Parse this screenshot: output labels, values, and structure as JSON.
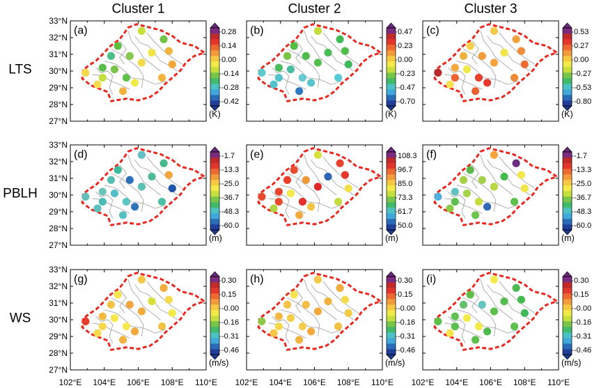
{
  "column_titles": [
    "Cluster 1",
    "Cluster 2",
    "Cluster 3"
  ],
  "row_labels": [
    "LTS",
    "PBLH",
    "WS"
  ],
  "lat_ticks": [
    "33°N",
    "32°N",
    "31°N",
    "30°N",
    "29°N",
    "28°N",
    "27°N"
  ],
  "lon_ticks": [
    "102°E",
    "104°E",
    "106°E",
    "108°E",
    "110°E"
  ],
  "map_extent": {
    "lon": [
      102,
      110
    ],
    "lat": [
      27,
      33
    ]
  },
  "panels": [
    {
      "id": "a",
      "label": "(a)",
      "row": 0,
      "col": 0,
      "unit": "(K)",
      "colorbar": [
        "0.28",
        "0.14",
        "0.00",
        "-0.14",
        "-0.28",
        "-0.42"
      ],
      "dots": [
        "#c9e03a",
        "#5fbe3e",
        "#72c447",
        "#f1e44b",
        "#f0b340",
        "#4bbf86",
        "#85c94f",
        "#f2da4b",
        "#f3a73a",
        "#5bbd4c",
        "#79c44b",
        "#f6d84c",
        "#62c14e",
        "#c6df3e",
        "#f1ea48",
        "#f3b23e",
        "#f2b43e",
        "#f6dc4e"
      ]
    },
    {
      "id": "b",
      "label": "(b)",
      "row": 0,
      "col": 1,
      "unit": "(K)",
      "colorbar": [
        "0.47",
        "0.23",
        "0.00",
        "-0.23",
        "-0.47",
        "-0.70"
      ],
      "dots": [
        "#c3dd3c",
        "#54bc44",
        "#3fba57",
        "#4bbd54",
        "#50bc4c",
        "#7ac549",
        "#4ebd4d",
        "#56be4c",
        "#3fba5a",
        "#4abc5b",
        "#49bc9f",
        "#5ec9c8",
        "#67c9d1",
        "#54c2cb",
        "#58c4cc",
        "#2f79c1",
        "#5ccad6",
        "#52c3ce"
      ]
    },
    {
      "id": "c",
      "label": "(c)",
      "row": 0,
      "col": 2,
      "unit": "(K)",
      "colorbar": [
        "0.53",
        "0.27",
        "0.00",
        "-0.27",
        "-0.53",
        "-0.80"
      ],
      "dots": [
        "#f7c94a",
        "#f5d14b",
        "#f3a23b",
        "#f1e44b",
        "#ee8b38",
        "#f0b23e",
        "#f39c3c",
        "#f4a43e",
        "#ee6a33",
        "#f3a73e",
        "#f2ea48",
        "#b82a2a",
        "#e8402d",
        "#ed6432",
        "#e6382d",
        "#e9612f",
        "#ef8c38",
        "#f8e24f"
      ]
    },
    {
      "id": "d",
      "label": "(d)",
      "row": 1,
      "col": 0,
      "unit": "(m)",
      "colorbar": [
        "-1.7",
        "-13.3",
        "-25.0",
        "-36.7",
        "-48.3",
        "-60.0"
      ],
      "dots": [
        "#5fbfc2",
        "#3fb99a",
        "#48b98e",
        "#4fbb93",
        "#f2a53b",
        "#55bfb2",
        "#2a6db8",
        "#5ac0b3",
        "#1f55a8",
        "#6cc3ba",
        "#54bec8",
        "#61c1b8",
        "#5cc5c1",
        "#4cbcb6",
        "#2f74bb",
        "#55c0bf",
        "#4fbfa6",
        "#5bc0bc"
      ]
    },
    {
      "id": "e",
      "label": "(e)",
      "row": 1,
      "col": 1,
      "unit": "(m)",
      "colorbar": [
        "108.3",
        "96.7",
        "85.0",
        "73.3",
        "61.7",
        "50.0"
      ],
      "dots": [
        "#d6e03b",
        "#ea4d30",
        "#e8432e",
        "#2f66b4",
        "#e6372c",
        "#e8402d",
        "#ef9939",
        "#df2929",
        "#f4df4b",
        "#e8432e",
        "#f5ea4b",
        "#e54b2d",
        "#e4312c",
        "#ea4b2f",
        "#f4c544",
        "#f2ac3d",
        "#c4dc3f",
        "#b0d444"
      ]
    },
    {
      "id": "f",
      "label": "(f)",
      "row": 1,
      "col": 2,
      "unit": "(m)",
      "colorbar": [
        "-1.7",
        "-13.3",
        "-25.0",
        "-36.7",
        "-48.3",
        "-60.0"
      ],
      "dots": [
        "#f3a53c",
        "#5aba49",
        "#6b2d80",
        "#46ba4f",
        "#f2e74b",
        "#a5d145",
        "#a2d04a",
        "#b6d843",
        "#f1e44b",
        "#64c0c3",
        "#a6d34a",
        "#4fb0dd",
        "#c6dc3f",
        "#5ebf4f",
        "#2f69b6",
        "#6bc44c",
        "#5ebf4c",
        "#8acb48"
      ]
    },
    {
      "id": "g",
      "label": "(g)",
      "row": 2,
      "col": 0,
      "unit": "(m/s)",
      "colorbar": [
        "0.30",
        "0.15",
        "-0.00",
        "-0.16",
        "-0.31",
        "-0.46"
      ],
      "dots": [
        "#f4c94a",
        "#f6e34e",
        "#f3ac3e",
        "#d9df3d",
        "#f5da4b",
        "#f4c247",
        "#f2a43e",
        "#f2a93d",
        "#f2ea48",
        "#f2b841",
        "#f5e84d",
        "#e63c2c",
        "#f5e850",
        "#f6d84c",
        "#f3a83c",
        "#f3b13d",
        "#f1c246",
        "#f6da4e"
      ]
    },
    {
      "id": "h",
      "label": "(h)",
      "row": 2,
      "col": 1,
      "unit": "(m/s)",
      "colorbar": [
        "0.30",
        "0.15",
        "-0.00",
        "-0.16",
        "-0.31",
        "-0.46"
      ],
      "dots": [
        "#f4c94a",
        "#f6e34e",
        "#f3ac3e",
        "#f3b23f",
        "#f5da4b",
        "#f4c247",
        "#f4bd43",
        "#f2a93d",
        "#f3cb46",
        "#f2b841",
        "#f6cf49",
        "#91c84b",
        "#f6cc4c",
        "#f6d84c",
        "#f3a83c",
        "#f3b13d",
        "#f1c246",
        "#f5c64a"
      ]
    },
    {
      "id": "i",
      "label": "(i)",
      "row": 2,
      "col": 2,
      "unit": "(m/s)",
      "colorbar": [
        "0.30",
        "0.15",
        "-0.00",
        "-0.16",
        "-0.31",
        "-0.46"
      ],
      "dots": [
        "#f4ea4b",
        "#5cbe46",
        "#4cbc50",
        "#55be4d",
        "#45ba4f",
        "#64c06f",
        "#64c5bf",
        "#5dbf4c",
        "#3fba57",
        "#5cc052",
        "#f0ea4b",
        "#5dbf4c",
        "#f2ea48",
        "#5dbf4c",
        "#4dbc4d",
        "#5dbf4c",
        "#5ebf4f",
        "#f6e34e"
      ]
    }
  ]
}
